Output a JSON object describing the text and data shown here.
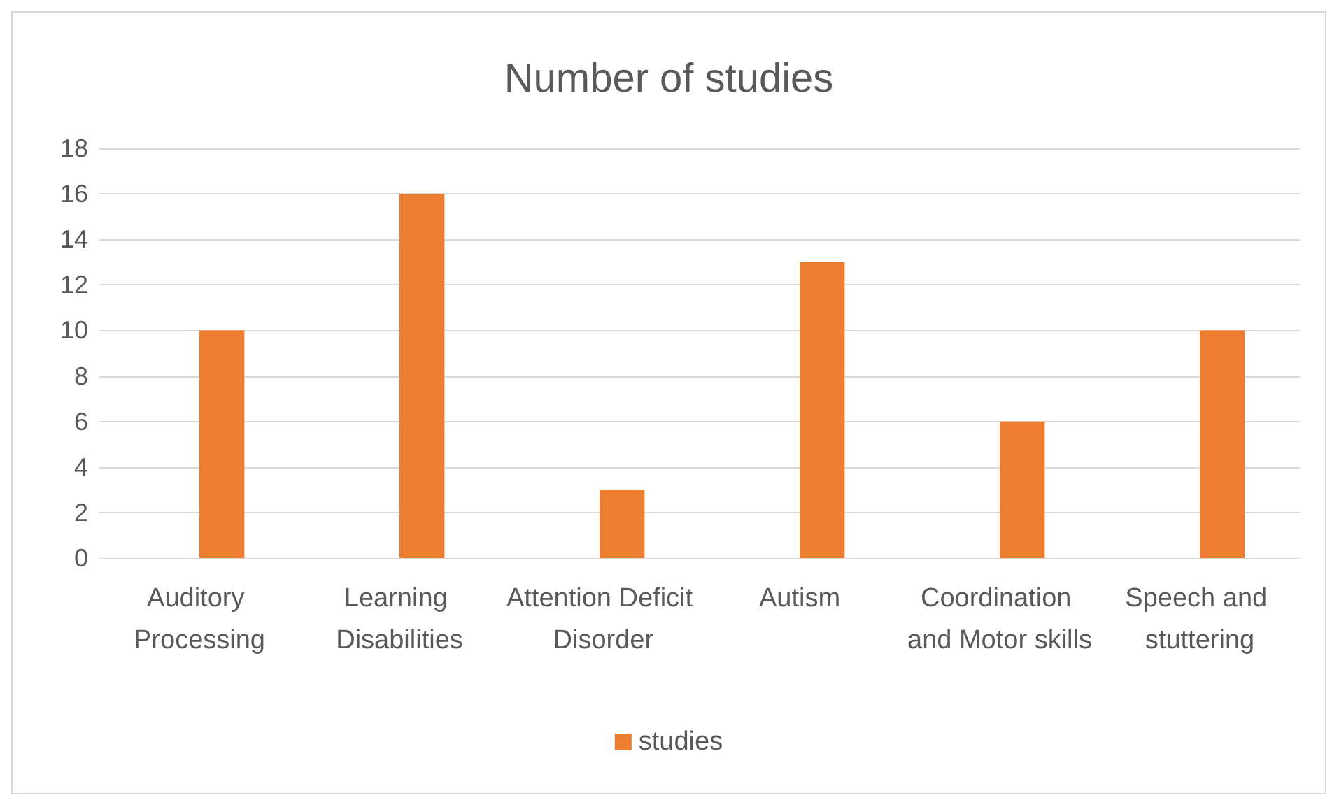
{
  "chart_data": {
    "type": "bar",
    "title": "Number of studies",
    "categories": [
      "Auditory Processing",
      "Learning Disabilities",
      "Attention Deficit Disorder",
      "Autism",
      "Coordination and Motor skills",
      "Speech and stuttering"
    ],
    "series": [
      {
        "color": "#4472c4",
        "values": [
          null,
          null,
          null,
          null,
          null,
          null
        ]
      },
      {
        "name": "studies",
        "color": "#ed7d31",
        "values": [
          10,
          16,
          3,
          13,
          6,
          10
        ]
      }
    ],
    "ylim": [
      0,
      18
    ],
    "yticks": [
      0,
      2,
      4,
      6,
      8,
      10,
      12,
      14,
      16,
      18
    ],
    "grid": "y",
    "legend": "bottom"
  }
}
